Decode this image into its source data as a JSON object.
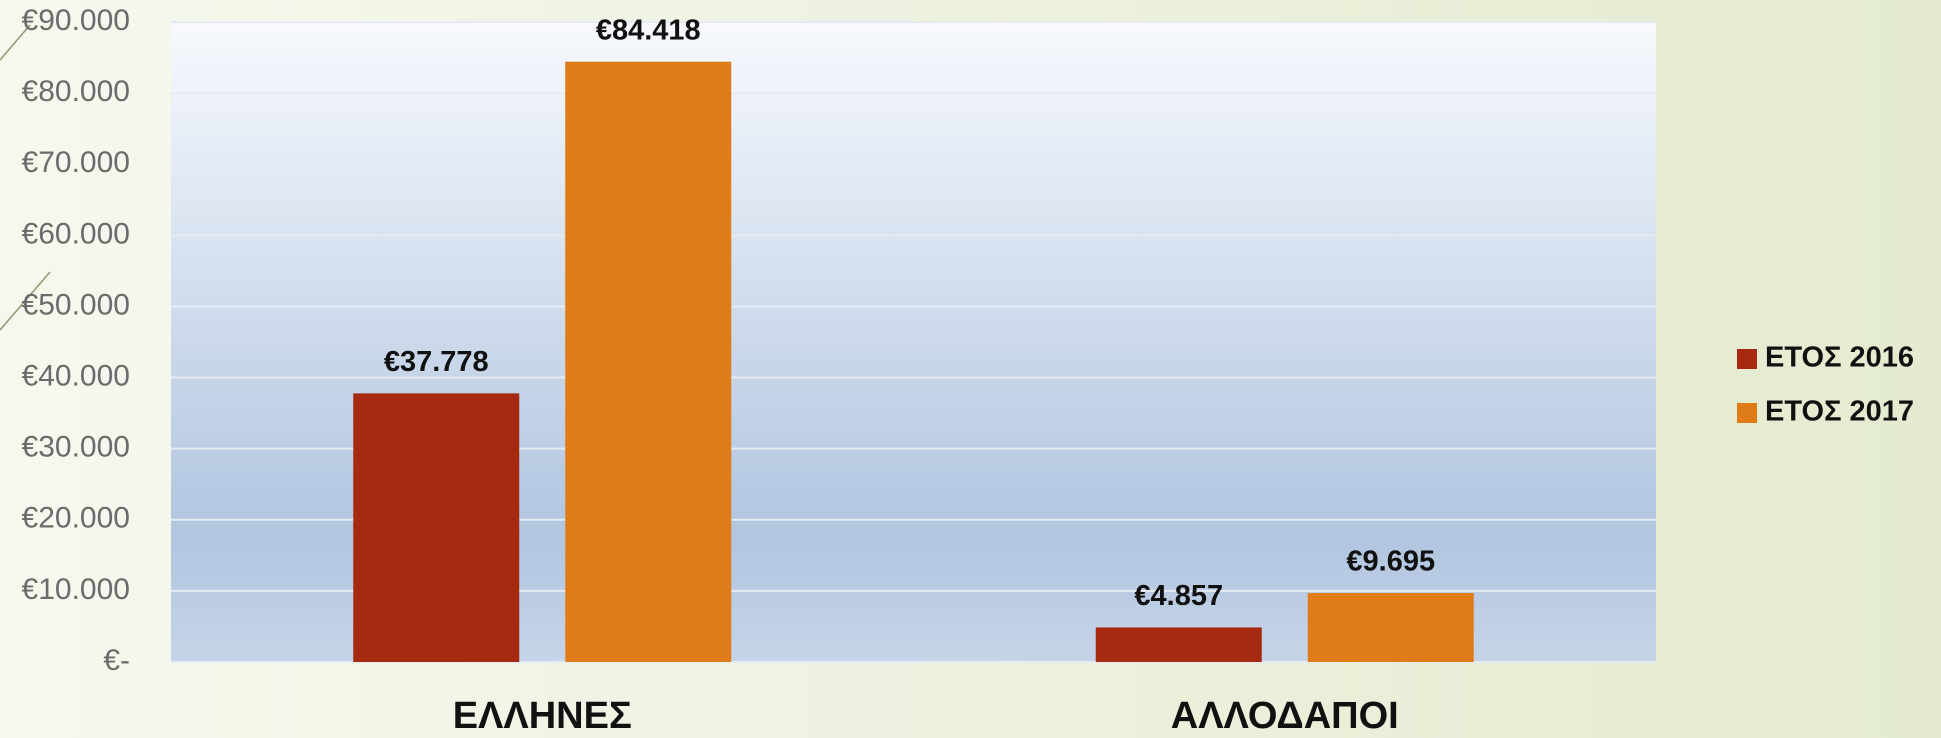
{
  "chart_data": {
    "type": "bar",
    "categories": [
      "ΕΛΛΗΝΕΣ",
      "ΑΛΛΟΔΑΠΟΙ"
    ],
    "series": [
      {
        "name": "ΕΤΟΣ 2016",
        "color": "#a52a0f",
        "values": [
          37778,
          4857
        ],
        "value_labels": [
          "€37.778",
          "€4.857"
        ]
      },
      {
        "name": "ΕΤΟΣ 2017",
        "color": "#e07c18",
        "values": [
          84418,
          9695
        ],
        "value_labels": [
          "€84.418",
          "€9.695"
        ]
      }
    ],
    "ylim": [
      0,
      90000
    ],
    "yticks": [
      {
        "value": 0,
        "label": "€-"
      },
      {
        "value": 10000,
        "label": "€10.000"
      },
      {
        "value": 20000,
        "label": "€20.000"
      },
      {
        "value": 30000,
        "label": "€30.000"
      },
      {
        "value": 40000,
        "label": "€40.000"
      },
      {
        "value": 50000,
        "label": "€50.000"
      },
      {
        "value": 60000,
        "label": "€60.000"
      },
      {
        "value": 70000,
        "label": "€70.000"
      },
      {
        "value": 80000,
        "label": "€80.000"
      },
      {
        "value": 90000,
        "label": "€90.000"
      }
    ],
    "grid": true,
    "legend": "right"
  }
}
